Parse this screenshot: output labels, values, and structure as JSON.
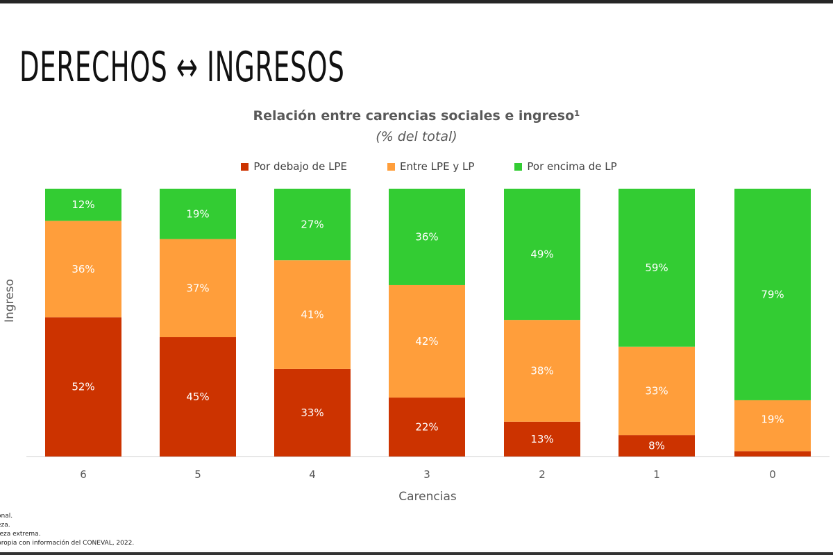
{
  "slide_title": "DERECHOS ↔ INGRESOS",
  "footnotes": [
    "onal.",
    "eza.",
    "reza extrema.",
    " propia con información del CONEVAL, 2022."
  ],
  "chart_data": {
    "type": "bar",
    "stacked": "100%",
    "title": "Relación entre carencias sociales e ingreso¹",
    "subtitle": "(% del total)",
    "xlabel": "Carencias",
    "ylabel": "Ingreso",
    "categories": [
      "6",
      "5",
      "4",
      "3",
      "2",
      "1",
      "0"
    ],
    "legend_position": "top",
    "grid": false,
    "series": [
      {
        "name": "Por debajo de LPE",
        "color": "#cc3300",
        "values": [
          52,
          45,
          33,
          22,
          13,
          8,
          2
        ],
        "labels": [
          "52%",
          "45%",
          "33%",
          "22%",
          "13%",
          "8%",
          "2%"
        ]
      },
      {
        "name": "Entre LPE y LP",
        "color": "#ff9e3b",
        "values": [
          36,
          37,
          41,
          42,
          38,
          33,
          19
        ],
        "labels": [
          "36%",
          "37%",
          "41%",
          "42%",
          "38%",
          "33%",
          "19%"
        ]
      },
      {
        "name": "Por encima de LP",
        "color": "#33cc33",
        "values": [
          12,
          19,
          27,
          36,
          49,
          59,
          79
        ],
        "labels": [
          "12%",
          "19%",
          "27%",
          "36%",
          "49%",
          "59%",
          "79%"
        ]
      }
    ]
  }
}
